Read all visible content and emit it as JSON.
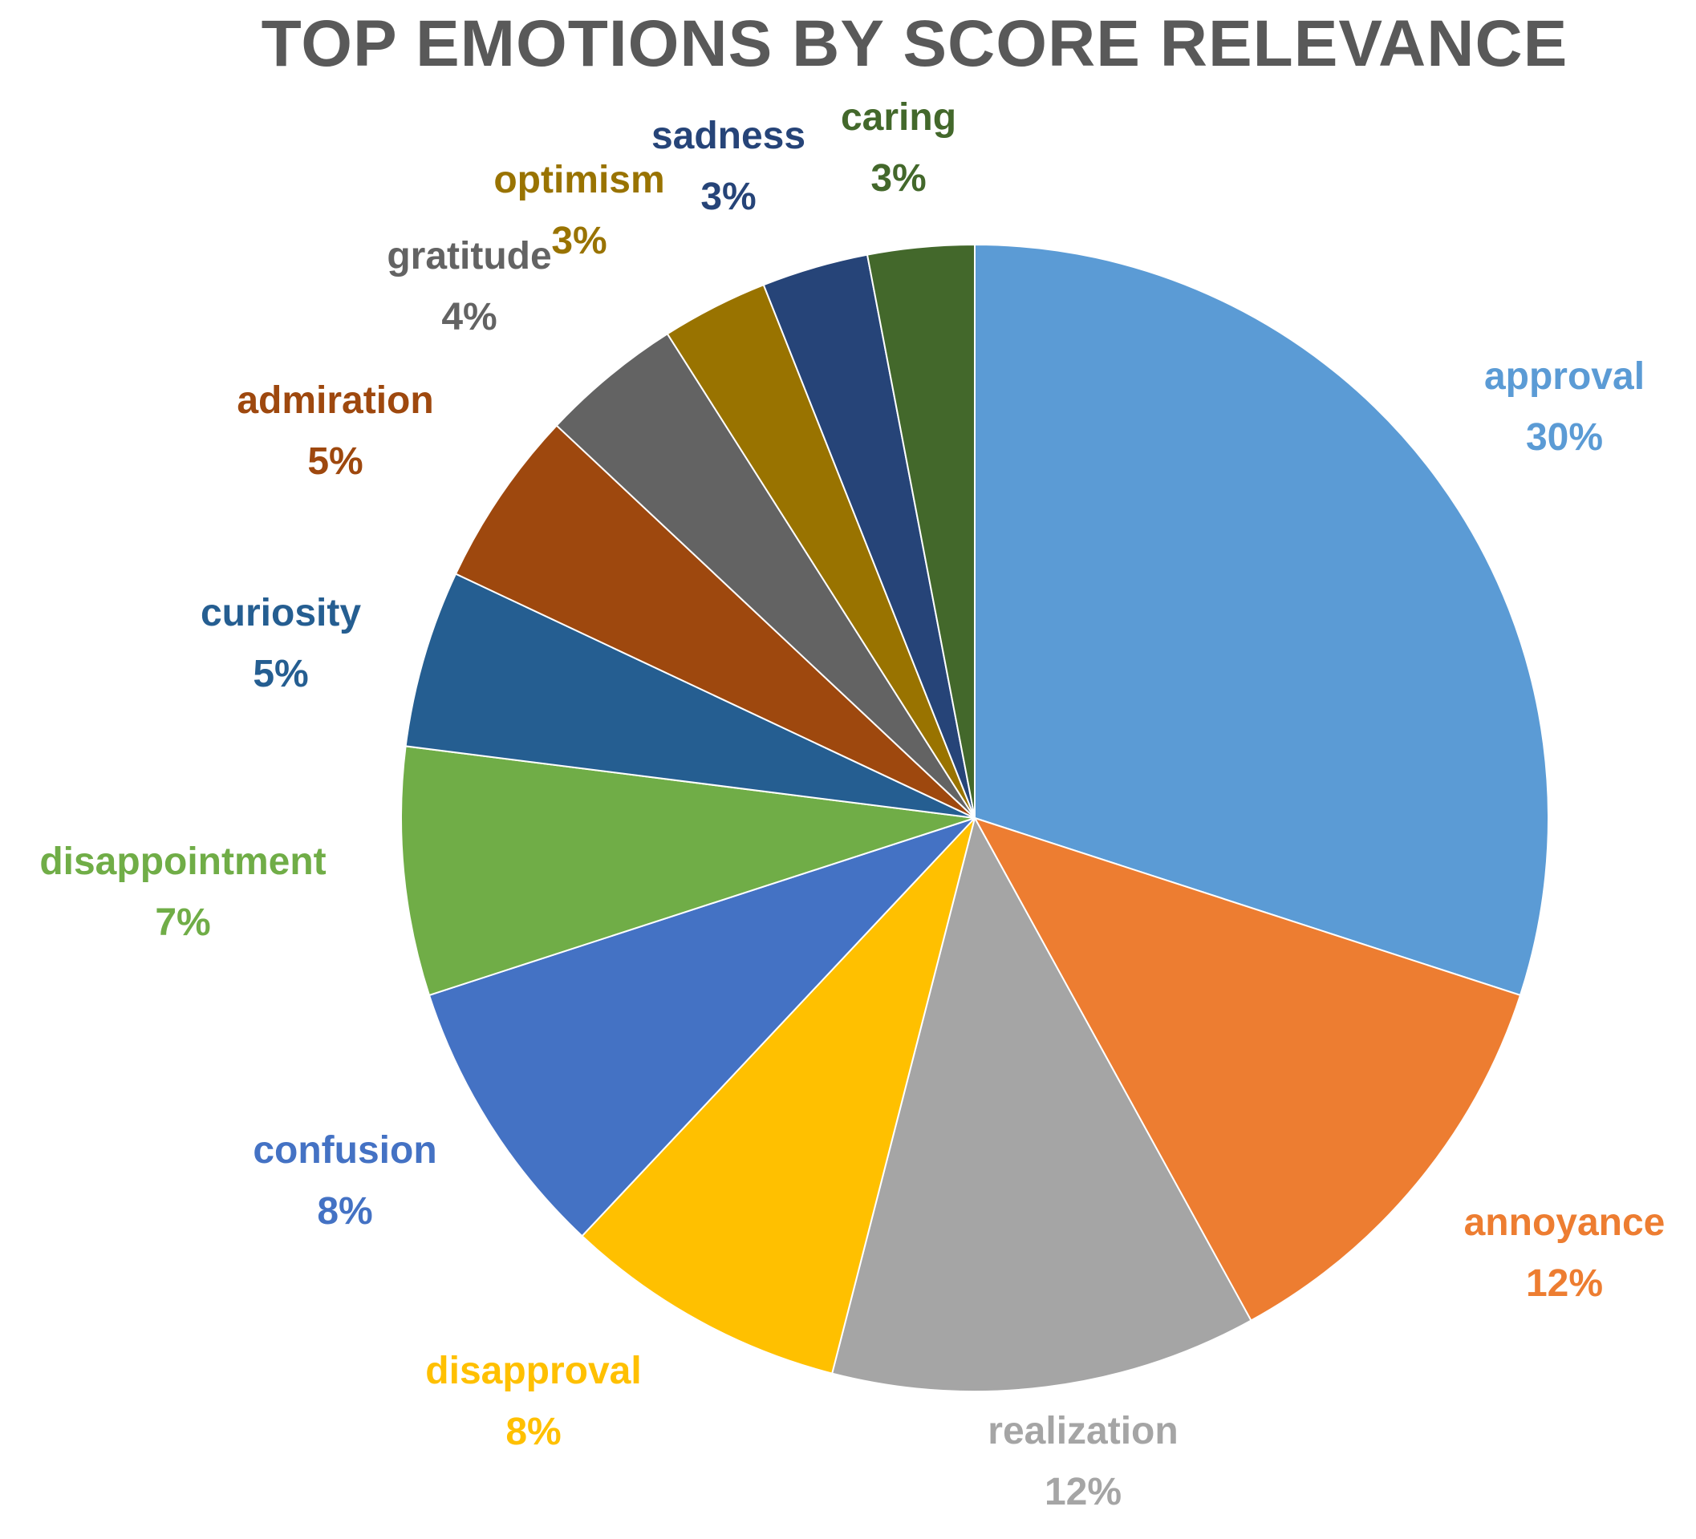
{
  "chart_data": {
    "type": "pie",
    "title": "TOP EMOTIONS BY SCORE RELEVANCE",
    "slices": [
      {
        "label": "approval",
        "value": 30,
        "display": "30%",
        "color": "#5B9BD5"
      },
      {
        "label": "annoyance",
        "value": 12,
        "display": "12%",
        "color": "#ED7D31"
      },
      {
        "label": "realization",
        "value": 12,
        "display": "12%",
        "color": "#A5A5A5"
      },
      {
        "label": "disapproval",
        "value": 8,
        "display": "8%",
        "color": "#FFC000"
      },
      {
        "label": "confusion",
        "value": 8,
        "display": "8%",
        "color": "#4472C4"
      },
      {
        "label": "disappointment",
        "value": 7,
        "display": "7%",
        "color": "#70AD47"
      },
      {
        "label": "curiosity",
        "value": 5,
        "display": "5%",
        "color": "#255E91"
      },
      {
        "label": "admiration",
        "value": 5,
        "display": "5%",
        "color": "#9E480E"
      },
      {
        "label": "gratitude",
        "value": 4,
        "display": "4%",
        "color": "#636363"
      },
      {
        "label": "optimism",
        "value": 3,
        "display": "3%",
        "color": "#997300"
      },
      {
        "label": "sadness",
        "value": 3,
        "display": "3%",
        "color": "#264478"
      },
      {
        "label": "caring",
        "value": 3,
        "display": "3%",
        "color": "#43682B"
      }
    ],
    "legend": "none",
    "data_labels": "category name and percentage, outside end"
  }
}
